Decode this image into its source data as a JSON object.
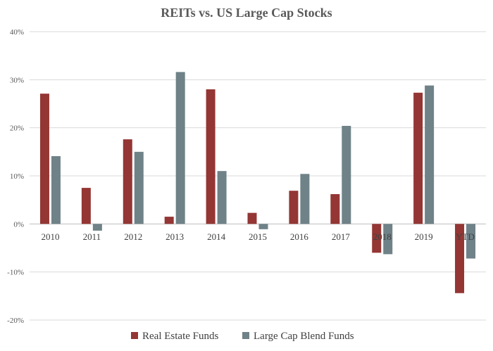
{
  "chart_data": {
    "type": "bar",
    "title": "REITs vs. US Large Cap Stocks",
    "categories": [
      "2010",
      "2011",
      "2012",
      "2013",
      "2014",
      "2015",
      "2016",
      "2017",
      "2018",
      "2019",
      "YTD"
    ],
    "series": [
      {
        "name": "Real Estate Funds",
        "color": "#943634",
        "values": [
          27.1,
          7.5,
          17.6,
          1.5,
          28.0,
          2.3,
          6.9,
          6.2,
          -6.0,
          27.3,
          -14.4
        ]
      },
      {
        "name": "Large Cap Blend Funds",
        "color": "#6f8288",
        "values": [
          14.1,
          -1.4,
          15.0,
          31.6,
          11.0,
          -1.1,
          10.4,
          20.4,
          -6.3,
          28.8,
          -7.2
        ]
      }
    ],
    "ylim": [
      -20,
      40
    ],
    "yticks": [
      "-20%",
      "-10%",
      "0%",
      "10%",
      "20%",
      "30%",
      "40%"
    ],
    "ytick_values": [
      -20,
      -10,
      0,
      10,
      20,
      30,
      40
    ],
    "grid": true,
    "legend": "bottom",
    "xlabel": "",
    "ylabel": ""
  }
}
